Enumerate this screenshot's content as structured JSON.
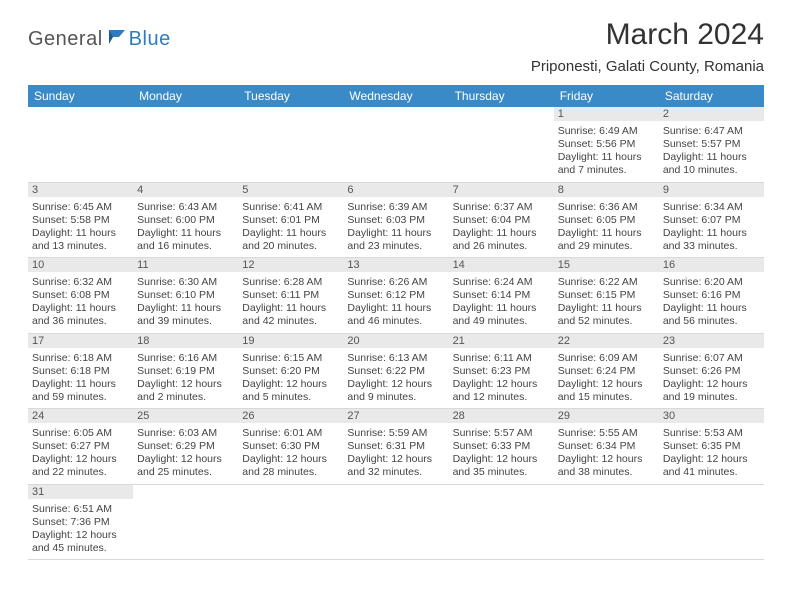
{
  "logo": {
    "text1": "General",
    "text2": "Blue"
  },
  "title": "March 2024",
  "location": "Priponesti, Galati County, Romania",
  "colors": {
    "header_bg": "#3a8ac7",
    "header_fg": "#ffffff",
    "daybar_bg": "#e9e9e9",
    "border": "#d9d9d9",
    "text": "#444444",
    "logo_blue": "#2f7bbf"
  },
  "weekdays": [
    "Sunday",
    "Monday",
    "Tuesday",
    "Wednesday",
    "Thursday",
    "Friday",
    "Saturday"
  ],
  "weeks": [
    [
      null,
      null,
      null,
      null,
      null,
      {
        "n": "1",
        "rise": "Sunrise: 6:49 AM",
        "set": "Sunset: 5:56 PM",
        "day1": "Daylight: 11 hours",
        "day2": "and 7 minutes."
      },
      {
        "n": "2",
        "rise": "Sunrise: 6:47 AM",
        "set": "Sunset: 5:57 PM",
        "day1": "Daylight: 11 hours",
        "day2": "and 10 minutes."
      }
    ],
    [
      {
        "n": "3",
        "rise": "Sunrise: 6:45 AM",
        "set": "Sunset: 5:58 PM",
        "day1": "Daylight: 11 hours",
        "day2": "and 13 minutes."
      },
      {
        "n": "4",
        "rise": "Sunrise: 6:43 AM",
        "set": "Sunset: 6:00 PM",
        "day1": "Daylight: 11 hours",
        "day2": "and 16 minutes."
      },
      {
        "n": "5",
        "rise": "Sunrise: 6:41 AM",
        "set": "Sunset: 6:01 PM",
        "day1": "Daylight: 11 hours",
        "day2": "and 20 minutes."
      },
      {
        "n": "6",
        "rise": "Sunrise: 6:39 AM",
        "set": "Sunset: 6:03 PM",
        "day1": "Daylight: 11 hours",
        "day2": "and 23 minutes."
      },
      {
        "n": "7",
        "rise": "Sunrise: 6:37 AM",
        "set": "Sunset: 6:04 PM",
        "day1": "Daylight: 11 hours",
        "day2": "and 26 minutes."
      },
      {
        "n": "8",
        "rise": "Sunrise: 6:36 AM",
        "set": "Sunset: 6:05 PM",
        "day1": "Daylight: 11 hours",
        "day2": "and 29 minutes."
      },
      {
        "n": "9",
        "rise": "Sunrise: 6:34 AM",
        "set": "Sunset: 6:07 PM",
        "day1": "Daylight: 11 hours",
        "day2": "and 33 minutes."
      }
    ],
    [
      {
        "n": "10",
        "rise": "Sunrise: 6:32 AM",
        "set": "Sunset: 6:08 PM",
        "day1": "Daylight: 11 hours",
        "day2": "and 36 minutes."
      },
      {
        "n": "11",
        "rise": "Sunrise: 6:30 AM",
        "set": "Sunset: 6:10 PM",
        "day1": "Daylight: 11 hours",
        "day2": "and 39 minutes."
      },
      {
        "n": "12",
        "rise": "Sunrise: 6:28 AM",
        "set": "Sunset: 6:11 PM",
        "day1": "Daylight: 11 hours",
        "day2": "and 42 minutes."
      },
      {
        "n": "13",
        "rise": "Sunrise: 6:26 AM",
        "set": "Sunset: 6:12 PM",
        "day1": "Daylight: 11 hours",
        "day2": "and 46 minutes."
      },
      {
        "n": "14",
        "rise": "Sunrise: 6:24 AM",
        "set": "Sunset: 6:14 PM",
        "day1": "Daylight: 11 hours",
        "day2": "and 49 minutes."
      },
      {
        "n": "15",
        "rise": "Sunrise: 6:22 AM",
        "set": "Sunset: 6:15 PM",
        "day1": "Daylight: 11 hours",
        "day2": "and 52 minutes."
      },
      {
        "n": "16",
        "rise": "Sunrise: 6:20 AM",
        "set": "Sunset: 6:16 PM",
        "day1": "Daylight: 11 hours",
        "day2": "and 56 minutes."
      }
    ],
    [
      {
        "n": "17",
        "rise": "Sunrise: 6:18 AM",
        "set": "Sunset: 6:18 PM",
        "day1": "Daylight: 11 hours",
        "day2": "and 59 minutes."
      },
      {
        "n": "18",
        "rise": "Sunrise: 6:16 AM",
        "set": "Sunset: 6:19 PM",
        "day1": "Daylight: 12 hours",
        "day2": "and 2 minutes."
      },
      {
        "n": "19",
        "rise": "Sunrise: 6:15 AM",
        "set": "Sunset: 6:20 PM",
        "day1": "Daylight: 12 hours",
        "day2": "and 5 minutes."
      },
      {
        "n": "20",
        "rise": "Sunrise: 6:13 AM",
        "set": "Sunset: 6:22 PM",
        "day1": "Daylight: 12 hours",
        "day2": "and 9 minutes."
      },
      {
        "n": "21",
        "rise": "Sunrise: 6:11 AM",
        "set": "Sunset: 6:23 PM",
        "day1": "Daylight: 12 hours",
        "day2": "and 12 minutes."
      },
      {
        "n": "22",
        "rise": "Sunrise: 6:09 AM",
        "set": "Sunset: 6:24 PM",
        "day1": "Daylight: 12 hours",
        "day2": "and 15 minutes."
      },
      {
        "n": "23",
        "rise": "Sunrise: 6:07 AM",
        "set": "Sunset: 6:26 PM",
        "day1": "Daylight: 12 hours",
        "day2": "and 19 minutes."
      }
    ],
    [
      {
        "n": "24",
        "rise": "Sunrise: 6:05 AM",
        "set": "Sunset: 6:27 PM",
        "day1": "Daylight: 12 hours",
        "day2": "and 22 minutes."
      },
      {
        "n": "25",
        "rise": "Sunrise: 6:03 AM",
        "set": "Sunset: 6:29 PM",
        "day1": "Daylight: 12 hours",
        "day2": "and 25 minutes."
      },
      {
        "n": "26",
        "rise": "Sunrise: 6:01 AM",
        "set": "Sunset: 6:30 PM",
        "day1": "Daylight: 12 hours",
        "day2": "and 28 minutes."
      },
      {
        "n": "27",
        "rise": "Sunrise: 5:59 AM",
        "set": "Sunset: 6:31 PM",
        "day1": "Daylight: 12 hours",
        "day2": "and 32 minutes."
      },
      {
        "n": "28",
        "rise": "Sunrise: 5:57 AM",
        "set": "Sunset: 6:33 PM",
        "day1": "Daylight: 12 hours",
        "day2": "and 35 minutes."
      },
      {
        "n": "29",
        "rise": "Sunrise: 5:55 AM",
        "set": "Sunset: 6:34 PM",
        "day1": "Daylight: 12 hours",
        "day2": "and 38 minutes."
      },
      {
        "n": "30",
        "rise": "Sunrise: 5:53 AM",
        "set": "Sunset: 6:35 PM",
        "day1": "Daylight: 12 hours",
        "day2": "and 41 minutes."
      }
    ],
    [
      {
        "n": "31",
        "rise": "Sunrise: 6:51 AM",
        "set": "Sunset: 7:36 PM",
        "day1": "Daylight: 12 hours",
        "day2": "and 45 minutes."
      },
      null,
      null,
      null,
      null,
      null,
      null
    ]
  ]
}
